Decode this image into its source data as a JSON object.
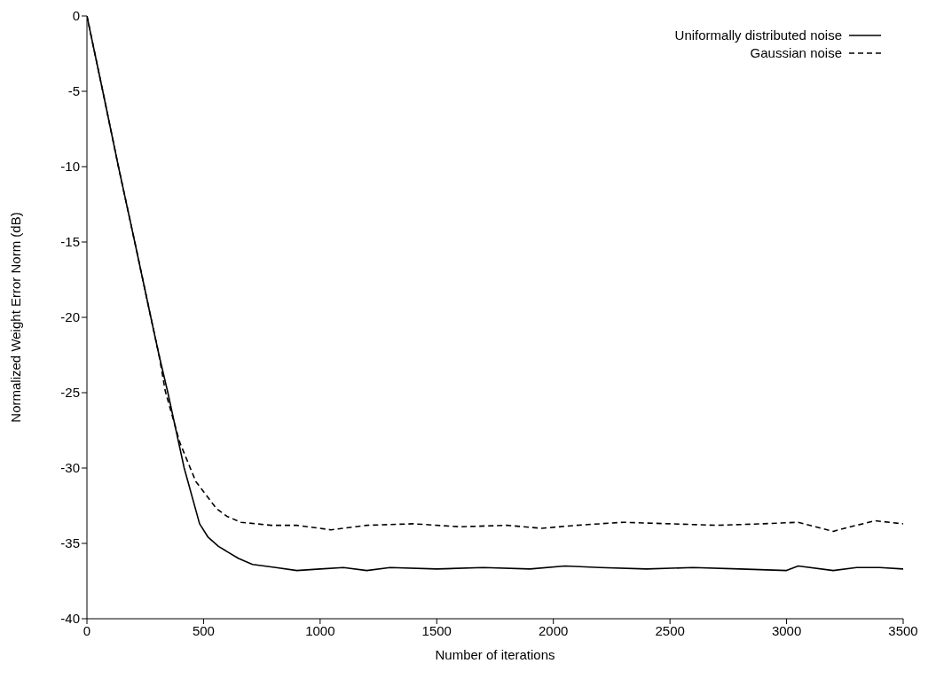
{
  "chart_data": {
    "type": "line",
    "xlabel": "Number of iterations",
    "ylabel": "Normalized Weight Error Norm (dB)",
    "xlim": [
      0,
      3500
    ],
    "xticks": [
      0,
      500,
      1000,
      1500,
      2000,
      2500,
      3000,
      3500
    ],
    "ylim": [
      -40,
      0
    ],
    "yticks": [
      -40,
      -35,
      -30,
      -25,
      -20,
      -15,
      -10,
      -5,
      0
    ],
    "grid": false,
    "legend": "top right",
    "marker": "none",
    "series": [
      {
        "name": "Uniformally distributed noise",
        "color": "#000000",
        "line_style": "solid",
        "x": [
          0,
          68,
          135,
          205,
          274,
          309,
          347,
          417,
          483,
          520,
          564,
          650,
          710,
          810,
          900,
          1000,
          1100,
          1200,
          1300,
          1500,
          1700,
          1900,
          2050,
          2200,
          2400,
          2600,
          2800,
          3000,
          3050,
          3200,
          3300,
          3400,
          3500
        ],
        "values": [
          0,
          -5,
          -10,
          -15,
          -20,
          -22.5,
          -25,
          -30,
          -33.7,
          -34.6,
          -35.2,
          -36,
          -36.4,
          -36.6,
          -36.8,
          -36.7,
          -36.6,
          -36.8,
          -36.6,
          -36.7,
          -36.6,
          -36.7,
          -36.5,
          -36.6,
          -36.7,
          -36.6,
          -36.7,
          -36.8,
          -36.5,
          -36.8,
          -36.6,
          -36.6,
          -36.7
        ]
      },
      {
        "name": "Gaussian noise",
        "color": "#000000",
        "line_style": "dashed",
        "x": [
          0,
          68,
          135,
          205,
          274,
          309,
          336,
          398,
          467,
          556,
          600,
          660,
          790,
          900,
          1046,
          1200,
          1400,
          1600,
          1800,
          1950,
          2100,
          2300,
          2500,
          2700,
          2900,
          3050,
          3200,
          3300,
          3380,
          3500
        ],
        "values": [
          0,
          -5,
          -10,
          -15,
          -20,
          -22.5,
          -24.9,
          -28.3,
          -30.9,
          -32.7,
          -33.2,
          -33.6,
          -33.8,
          -33.8,
          -34.1,
          -33.8,
          -33.7,
          -33.9,
          -33.8,
          -34.0,
          -33.8,
          -33.6,
          -33.7,
          -33.8,
          -33.7,
          -33.6,
          -34.2,
          -33.8,
          -33.5,
          -33.7
        ]
      }
    ]
  }
}
